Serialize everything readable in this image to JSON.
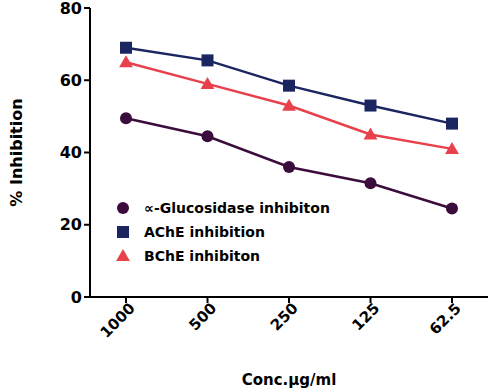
{
  "chart_data": {
    "type": "line",
    "x_label": "Conc.µg/ml",
    "y_label": "% Inhibition",
    "categories": [
      "1000",
      "500",
      "250",
      "125",
      "62.5"
    ],
    "series": [
      {
        "name": "∝-Glucosidase inhibiton",
        "color": "#3b0d3d",
        "marker": "circle",
        "values": [
          49.5,
          44.5,
          36,
          31.5,
          24.5
        ]
      },
      {
        "name": "AChE inhibition",
        "color": "#1b2660",
        "marker": "square",
        "values": [
          69,
          65.5,
          58.5,
          53,
          48
        ]
      },
      {
        "name": "BChE inhibiton",
        "color": "#e8414b",
        "marker": "triangle",
        "values": [
          65,
          59,
          53,
          45,
          41
        ]
      }
    ],
    "ylim": [
      0,
      80
    ],
    "yticks": [
      0,
      20,
      40,
      60,
      80
    ],
    "grid": false,
    "legend": "left"
  }
}
